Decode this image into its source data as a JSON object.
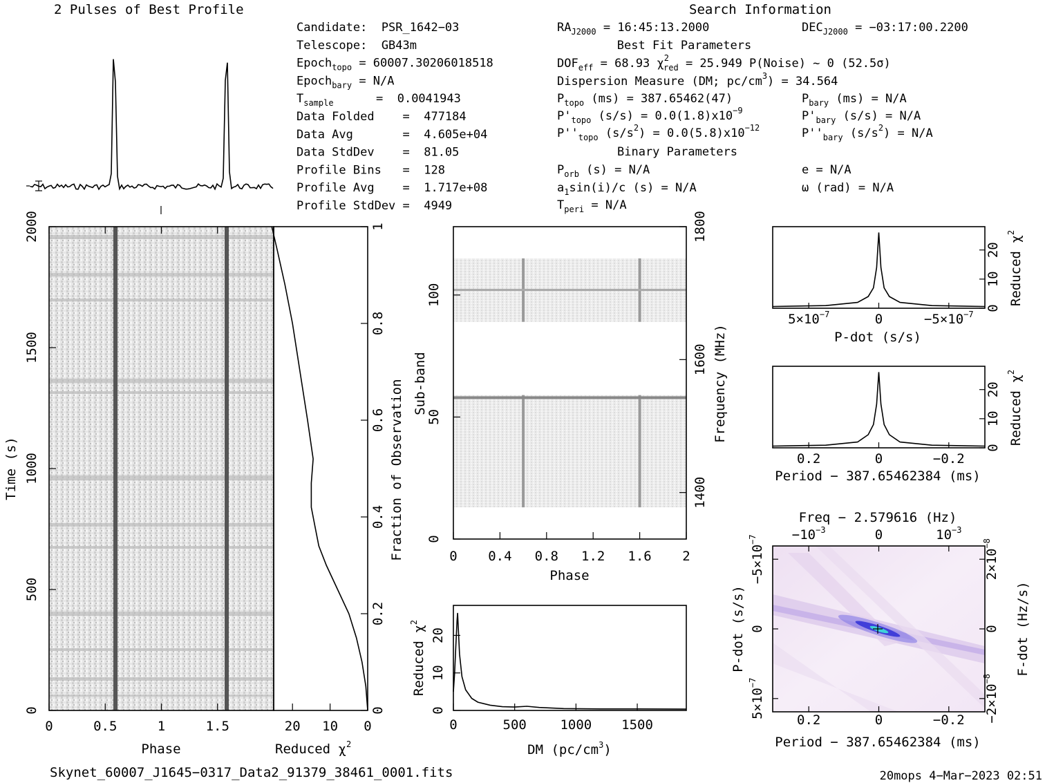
{
  "chart_data": [
    {
      "id": "profile",
      "type": "line",
      "title": "2 Pulses of Best Profile",
      "x": [
        0,
        0.58,
        0.6,
        0.62,
        1.0,
        1.58,
        1.6,
        1.62,
        2.0
      ],
      "values": [
        0,
        0,
        1,
        0,
        0,
        0,
        1,
        0,
        0
      ]
    },
    {
      "id": "time_phase",
      "type": "heatmap",
      "xlabel": "Phase",
      "ylabel": "Time (s)",
      "xlim": [
        0,
        2
      ],
      "ylim": [
        0,
        2000
      ],
      "xticks": [
        "0",
        "0.5",
        "1",
        "1.5"
      ],
      "yticks": [
        "0",
        "500",
        "1000",
        "1500",
        "2000"
      ],
      "pulse_phase": [
        0.6,
        1.6
      ]
    },
    {
      "id": "time_chi2",
      "type": "line",
      "xlabel": "Reduced",
      "xlabel_sym": "χ",
      "xlabel_sup": "2",
      "ylabel": "Fraction of Observation",
      "xlim": [
        25,
        0
      ],
      "ylim": [
        0,
        1
      ],
      "xticks": [
        "20",
        "10",
        "0"
      ],
      "yticks": [
        "0",
        "0.2",
        "0.4",
        "0.6",
        "0.8",
        "1"
      ],
      "x": [
        0,
        0.5,
        1.5,
        3,
        5,
        8,
        11,
        13,
        14,
        15,
        15,
        14.5,
        16,
        18,
        20,
        22,
        24,
        25.5
      ],
      "y": [
        0,
        0.05,
        0.1,
        0.15,
        0.2,
        0.25,
        0.3,
        0.34,
        0.38,
        0.42,
        0.47,
        0.52,
        0.6,
        0.7,
        0.8,
        0.88,
        0.95,
        1.0
      ]
    },
    {
      "id": "subband",
      "type": "heatmap",
      "xlabel": "Phase",
      "ylabel": "Sub-band",
      "ylabel2": "Frequency (MHz)",
      "xlim": [
        0,
        2
      ],
      "ylim": [
        0,
        128
      ],
      "xticks": [
        "0",
        "0.4",
        "0.8",
        "1.2",
        "1.6",
        "2"
      ],
      "yticks": [
        "0",
        "50",
        "100"
      ],
      "y2ticks": [
        "1400",
        "1600",
        "1800"
      ],
      "bands": [
        [
          13,
          59
        ],
        [
          89,
          115
        ]
      ],
      "pulse_phase": [
        0.6,
        1.6
      ]
    },
    {
      "id": "dm",
      "type": "line",
      "xlabel": "DM (pc/cm",
      "xlabel_sup": "3",
      "xlabel_end": ")",
      "ylabel": "Reduced",
      "ylabel_sym": "χ",
      "ylabel_sup": "2",
      "xlim": [
        0,
        1900
      ],
      "ylim": [
        0,
        28
      ],
      "xticks": [
        "0",
        "500",
        "1000",
        "1500"
      ],
      "yticks": [
        "0",
        "10",
        "20"
      ],
      "x": [
        0,
        10,
        20,
        30,
        34.6,
        40,
        50,
        70,
        100,
        150,
        200,
        300,
        400,
        500,
        600,
        700,
        900,
        1200,
        1500,
        1900
      ],
      "y": [
        5,
        10,
        17,
        24,
        26,
        22,
        15,
        9,
        5.5,
        3.2,
        2.2,
        1.4,
        1.0,
        0.9,
        1.1,
        0.8,
        0.5,
        0.4,
        0.4,
        0.35
      ]
    },
    {
      "id": "pdot",
      "type": "line",
      "xlabel": "P-dot (s/s)",
      "ylabel": "Reduced",
      "ylabel_sym": "χ",
      "ylabel_sup": "2",
      "xticks": [
        "5×10",
        "0",
        "−5×10"
      ],
      "xticks_sup": [
        "−7",
        "",
        "−7"
      ],
      "yticks": [
        "0",
        "10",
        "20"
      ],
      "x": [
        -1.0,
        -0.5,
        -0.2,
        -0.1,
        -0.05,
        -0.02,
        0,
        0.02,
        0.05,
        0.1,
        0.2,
        0.5,
        1.0
      ],
      "y": [
        0.6,
        0.9,
        2.0,
        4.0,
        7.0,
        14,
        26,
        14,
        7.0,
        4.0,
        2.0,
        0.9,
        0.6
      ]
    },
    {
      "id": "period",
      "type": "line",
      "xlabel": "Period − 387.65462384 (ms)",
      "ylabel": "Reduced",
      "ylabel_sym": "χ",
      "ylabel_sup": "2",
      "xticks": [
        "0.2",
        "0",
        "−0.2"
      ],
      "yticks": [
        "0",
        "10",
        "20"
      ],
      "x": [
        -1.0,
        -0.5,
        -0.2,
        -0.1,
        -0.05,
        -0.02,
        0,
        0.02,
        0.05,
        0.1,
        0.2,
        0.5,
        1.0
      ],
      "y": [
        0.6,
        0.9,
        2.0,
        4.5,
        8.0,
        15,
        26,
        15,
        8.0,
        4.5,
        2.0,
        0.9,
        0.6
      ]
    },
    {
      "id": "ppdot",
      "type": "heatmap",
      "title": "Freq − 2.579616 (Hz)",
      "xlabel": "Period − 387.65462384 (ms)",
      "ylabel": "P-dot (s/s)",
      "ylabel2": "F-dot (Hz/s)",
      "xticks": [
        "0.2",
        "0",
        "−0.2"
      ],
      "top_ticks": [
        "−10",
        "0",
        "10"
      ],
      "top_ticks_sup": [
        "−3",
        "",
        "−3"
      ],
      "yticks": [
        "−5×10",
        "0",
        "5×10"
      ],
      "yticks_sup": [
        "−7",
        "",
        "−7"
      ],
      "y2ticks": [
        "2×10",
        "0",
        "−2×10"
      ],
      "y2ticks_sup": [
        "−8",
        "",
        "−8"
      ]
    }
  ],
  "info": {
    "search_title": "Search Information",
    "left_rows": [
      {
        "k": "Candidate:  PSR_1642−03",
        "s": "",
        "v": ""
      },
      {
        "k": "Telescope:  GB43m",
        "s": "",
        "v": ""
      },
      {
        "k": "Epoch",
        "s": "topo",
        "v": " = 60007.30206018518"
      },
      {
        "k": "Epoch",
        "s": "bary",
        "v": " = N/A"
      },
      {
        "k": "T",
        "s": "sample",
        "v": "      =  0.0041943"
      },
      {
        "k": "Data Folded    =  477184",
        "s": "",
        "v": ""
      },
      {
        "k": "Data Avg       =  4.605e+04",
        "s": "",
        "v": ""
      },
      {
        "k": "Data StdDev    =  81.05",
        "s": "",
        "v": ""
      },
      {
        "k": "Profile Bins   =  128",
        "s": "",
        "v": ""
      },
      {
        "k": "Profile Avg    =  1.717e+08",
        "s": "",
        "v": ""
      },
      {
        "k": "Profile StdDev =  4949",
        "s": "",
        "v": ""
      }
    ],
    "ra": "RA",
    "ra_sub": "J2000",
    "ra_val": " = 16:45:13.2000",
    "dec": "DEC",
    "dec_sub": "J2000",
    "dec_val": " = −03:17:00.2200",
    "best_fit_title": "Best Fit Parameters",
    "dof": "DOF",
    "dof_sub": "eff",
    "dof_val": " = 68.93  ",
    "chi_sym": "χ",
    "chi_sup": "2",
    "chi_sub": "red",
    "chi_val": " = 25.949  P(Noise) ~ 0   (52.5σ)",
    "dm_line": "Dispersion Measure (DM; pc/cm",
    "dm_sup": "3",
    "dm_val": ") = 34.564",
    "ptopo": "P",
    "ptopo_sub": "topo",
    "ptopo_val": " (ms) =  387.65462(47)",
    "pbary": "P",
    "pbary_sub": "bary",
    "pbary_val": " (ms) = N/A",
    "pdtopo": "P'",
    "pdtopo_sub": "topo",
    "pdtopo_val": " (s/s) = 0.0(1.8)x10",
    "pdtopo_sup": "−9",
    "pdbary": "P'",
    "pdbary_sub": "bary",
    "pdbary_val": " (s/s) = N/A",
    "pddtopo": "P''",
    "pddtopo_sub": "topo",
    "pddtopo_val": " (s/s",
    "pddtopo_sup1": "2",
    "pddtopo_val2": ") = 0.0(5.8)x10",
    "pddtopo_sup2": "−12",
    "pddbary": "P''",
    "pddbary_sub": "bary",
    "pddbary_val": " (s/s",
    "pddbary_sup": "2",
    "pddbary_val2": ") = N/A",
    "binary_title": "Binary Parameters",
    "porb": "P",
    "porb_sub": "orb",
    "porb_val": " (s) = N/A",
    "ecc": "e = N/A",
    "a1": "a",
    "a1_sub": "1",
    "a1_val": "sin(i)/c (s) = N/A",
    "omega": "ω (rad) = N/A",
    "tperi": "T",
    "tperi_sub": "peri",
    "tperi_val": " = N/A"
  },
  "footer": {
    "filename": "Skynet_60007_J1645−0317_Data2_91379_38461_0001.fits",
    "stamp": "20mops  4−Mar−2023 02:51"
  }
}
